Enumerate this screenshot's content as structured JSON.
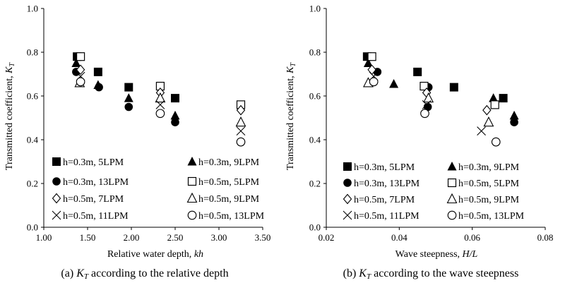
{
  "chart_data": [
    {
      "type": "scatter",
      "xlabel_prefix": "Relative water depth, ",
      "xlabel_var": "kh",
      "ylabel_prefix": "Transmitted coefficient, ",
      "ylabel_var": "K",
      "ylabel_sub": "T",
      "caption_prefix": "(a)  ",
      "caption_var": "K",
      "caption_sub": "T",
      "caption_suffix": "  according  to  the  relative  depth",
      "xlim": [
        1.0,
        3.5
      ],
      "ylim": [
        0.0,
        1.0
      ],
      "xticks": [
        "1.00",
        "1.50",
        "2.00",
        "2.50",
        "3.00",
        "3.50"
      ],
      "yticks": [
        "0.0",
        "0.2",
        "0.4",
        "0.6",
        "0.8",
        "1.0"
      ],
      "grid": false,
      "legend_position": "bottom",
      "series": [
        {
          "name": "h=0.3m, 5LPM",
          "marker": "square-filled",
          "points": [
            [
              1.38,
              0.78
            ],
            [
              1.62,
              0.71
            ],
            [
              1.97,
              0.64
            ],
            [
              2.5,
              0.59
            ]
          ]
        },
        {
          "name": "h=0.3m, 9LPM",
          "marker": "triangle-filled",
          "points": [
            [
              1.37,
              0.75
            ],
            [
              1.62,
              0.65
            ],
            [
              1.97,
              0.59
            ],
            [
              2.5,
              0.51
            ]
          ]
        },
        {
          "name": "h=0.3m, 13LPM",
          "marker": "circle-filled",
          "points": [
            [
              1.37,
              0.71
            ],
            [
              1.63,
              0.64
            ],
            [
              1.97,
              0.55
            ],
            [
              2.5,
              0.48
            ]
          ]
        },
        {
          "name": "h=0.5m, 5LPM",
          "marker": "square-open",
          "points": [
            [
              1.42,
              0.78
            ],
            [
              2.33,
              0.645
            ],
            [
              3.25,
              0.56
            ]
          ]
        },
        {
          "name": "h=0.5m, 7LPM",
          "marker": "diamond-open",
          "points": [
            [
              1.42,
              0.72
            ],
            [
              2.33,
              0.615
            ],
            [
              3.25,
              0.535
            ]
          ]
        },
        {
          "name": "h=0.5m, 9LPM",
          "marker": "triangle-open",
          "points": [
            [
              1.41,
              0.66
            ],
            [
              2.33,
              0.59
            ],
            [
              3.25,
              0.48
            ]
          ]
        },
        {
          "name": "h=0.5m, 11LPM",
          "marker": "cross",
          "points": [
            [
              1.42,
              0.69
            ],
            [
              2.33,
              0.56
            ],
            [
              3.25,
              0.44
            ]
          ]
        },
        {
          "name": "h=0.5m, 13LPM",
          "marker": "circle-open",
          "points": [
            [
              1.42,
              0.665
            ],
            [
              2.33,
              0.52
            ],
            [
              3.25,
              0.39
            ]
          ]
        }
      ]
    },
    {
      "type": "scatter",
      "xlabel_prefix": "Wave steepness, ",
      "xlabel_var": "H/L",
      "ylabel_prefix": "Transmitted coefficient, ",
      "ylabel_var": "K",
      "ylabel_sub": "T",
      "caption_prefix": "(b)  ",
      "caption_var": "K",
      "caption_sub": "T",
      "caption_suffix": "  according  to  the  wave  steepness",
      "xlim": [
        0.02,
        0.08
      ],
      "ylim": [
        0.0,
        1.0
      ],
      "xticks": [
        "0.02",
        "0.04",
        "0.06",
        "0.08"
      ],
      "yticks": [
        "0.0",
        "0.2",
        "0.4",
        "0.6",
        "0.8",
        "1.0"
      ],
      "grid": false,
      "legend_position": "bottom",
      "series": [
        {
          "name": "h=0.3m, 5LPM",
          "marker": "square-filled",
          "points": [
            [
              0.0312,
              0.78
            ],
            [
              0.045,
              0.71
            ],
            [
              0.055,
              0.64
            ],
            [
              0.0685,
              0.59
            ]
          ]
        },
        {
          "name": "h=0.3m, 9LPM",
          "marker": "triangle-filled",
          "points": [
            [
              0.0315,
              0.75
            ],
            [
              0.0385,
              0.655
            ],
            [
              0.048,
              0.59
            ],
            [
              0.0658,
              0.59
            ],
            [
              0.0715,
              0.51
            ]
          ]
        },
        {
          "name": "h=0.3m, 13LPM",
          "marker": "circle-filled",
          "points": [
            [
              0.034,
              0.71
            ],
            [
              0.048,
              0.64
            ],
            [
              0.0478,
              0.55
            ],
            [
              0.0715,
              0.48
            ]
          ]
        },
        {
          "name": "h=0.5m, 5LPM",
          "marker": "square-open",
          "points": [
            [
              0.0325,
              0.78
            ],
            [
              0.0468,
              0.645
            ],
            [
              0.0662,
              0.56
            ]
          ]
        },
        {
          "name": "h=0.5m, 7LPM",
          "marker": "diamond-open",
          "points": [
            [
              0.0325,
              0.72
            ],
            [
              0.0475,
              0.615
            ],
            [
              0.064,
              0.535
            ]
          ]
        },
        {
          "name": "h=0.5m, 9LPM",
          "marker": "triangle-open",
          "points": [
            [
              0.0315,
              0.66
            ],
            [
              0.048,
              0.59
            ],
            [
              0.0645,
              0.48
            ]
          ]
        },
        {
          "name": "h=0.5m, 11LPM",
          "marker": "cross",
          "points": [
            [
              0.033,
              0.69
            ],
            [
              0.0475,
              0.56
            ],
            [
              0.0625,
              0.44
            ]
          ]
        },
        {
          "name": "h=0.5m, 13LPM",
          "marker": "circle-open",
          "points": [
            [
              0.033,
              0.665
            ],
            [
              0.047,
              0.52
            ],
            [
              0.0665,
              0.39
            ]
          ]
        }
      ]
    }
  ]
}
